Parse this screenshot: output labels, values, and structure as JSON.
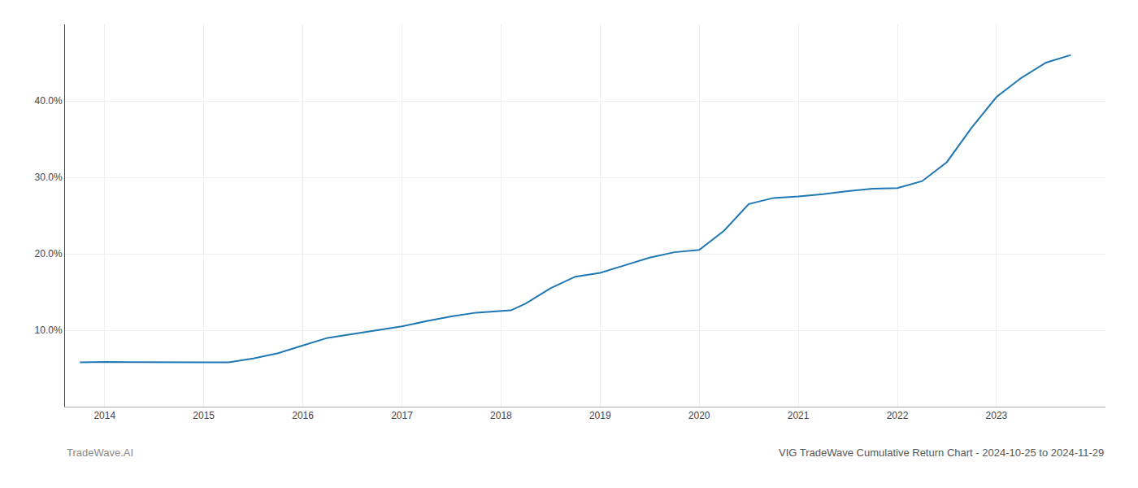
{
  "chart_data": {
    "type": "line",
    "title": "VIG TradeWave Cumulative Return Chart - 2024-10-25 to 2024-11-29",
    "annotations": [
      "TradeWave.AI"
    ],
    "color": "#1f77b4",
    "grid": true,
    "x": [
      2013.75,
      2014.0,
      2014.25,
      2014.5,
      2014.75,
      2015.0,
      2015.25,
      2015.5,
      2015.75,
      2016.0,
      2016.25,
      2016.5,
      2016.75,
      2017.0,
      2017.25,
      2017.5,
      2017.75,
      2018.0,
      2018.1,
      2018.25,
      2018.5,
      2018.75,
      2019.0,
      2019.25,
      2019.5,
      2019.75,
      2020.0,
      2020.25,
      2020.5,
      2020.75,
      2021.0,
      2021.25,
      2021.5,
      2021.75,
      2022.0,
      2022.25,
      2022.5,
      2022.75,
      2023.0,
      2023.25,
      2023.5,
      2023.75
    ],
    "values": [
      5.8,
      5.85,
      5.82,
      5.8,
      5.78,
      5.75,
      5.8,
      6.3,
      7.0,
      8.0,
      9.0,
      9.5,
      10.0,
      10.5,
      11.2,
      11.8,
      12.3,
      12.5,
      12.6,
      13.5,
      15.5,
      17.0,
      17.5,
      18.5,
      19.5,
      20.2,
      20.5,
      23.0,
      26.5,
      27.3,
      27.5,
      27.8,
      28.2,
      28.5,
      28.6,
      29.5,
      32.0,
      36.5,
      40.5,
      43.0,
      45.0,
      46.0
    ],
    "xlim": [
      2013.6,
      2024.1
    ],
    "xticks": [
      2014,
      2015,
      2016,
      2017,
      2018,
      2019,
      2020,
      2021,
      2022,
      2023
    ],
    "ylim": [
      0,
      50
    ],
    "yticks": [
      {
        "value": 10.0,
        "label": "10.0%"
      },
      {
        "value": 20.0,
        "label": "20.0%"
      },
      {
        "value": 30.0,
        "label": "30.0%"
      },
      {
        "value": 40.0,
        "label": "40.0%"
      }
    ]
  }
}
